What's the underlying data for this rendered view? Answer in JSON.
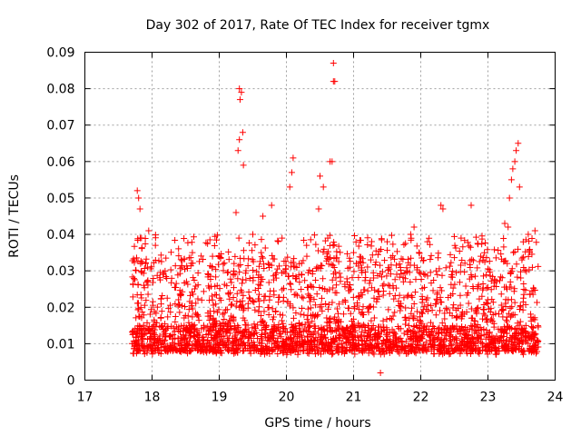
{
  "chart_data": {
    "type": "scatter",
    "title": "Day 302 of 2017, Rate Of TEC Index for receiver tgmx",
    "xlabel": "GPS time / hours",
    "ylabel": "ROTI / TECUs",
    "xlim": [
      17,
      24
    ],
    "ylim": [
      0,
      0.09
    ],
    "xticks": [
      "17",
      "18",
      "19",
      "20",
      "21",
      "22",
      "23",
      "24"
    ],
    "yticks": [
      "0",
      "0.01",
      "0.02",
      "0.03",
      "0.04",
      "0.05",
      "0.06",
      "0.07",
      "0.08",
      "0.09"
    ],
    "grid": true,
    "marker": "+",
    "color": "#ff0000",
    "data_extent": {
      "x_start": 17.7,
      "x_end": 23.75
    },
    "baseline_range": [
      0.004,
      0.03
    ],
    "notable_points": [
      {
        "x": 17.78,
        "y": 0.052
      },
      {
        "x": 17.8,
        "y": 0.05
      },
      {
        "x": 17.82,
        "y": 0.047
      },
      {
        "x": 17.95,
        "y": 0.041
      },
      {
        "x": 18.05,
        "y": 0.037
      },
      {
        "x": 19.3,
        "y": 0.08
      },
      {
        "x": 19.33,
        "y": 0.079
      },
      {
        "x": 19.31,
        "y": 0.077
      },
      {
        "x": 19.35,
        "y": 0.068
      },
      {
        "x": 19.3,
        "y": 0.066
      },
      {
        "x": 19.28,
        "y": 0.063
      },
      {
        "x": 19.36,
        "y": 0.059
      },
      {
        "x": 19.25,
        "y": 0.046
      },
      {
        "x": 19.78,
        "y": 0.048
      },
      {
        "x": 20.1,
        "y": 0.061
      },
      {
        "x": 20.08,
        "y": 0.057
      },
      {
        "x": 20.05,
        "y": 0.053
      },
      {
        "x": 20.5,
        "y": 0.056
      },
      {
        "x": 20.55,
        "y": 0.053
      },
      {
        "x": 20.48,
        "y": 0.047
      },
      {
        "x": 20.65,
        "y": 0.06
      },
      {
        "x": 20.68,
        "y": 0.06
      },
      {
        "x": 20.7,
        "y": 0.087
      },
      {
        "x": 20.7,
        "y": 0.082
      },
      {
        "x": 20.72,
        "y": 0.082
      },
      {
        "x": 21.9,
        "y": 0.042
      },
      {
        "x": 22.3,
        "y": 0.048
      },
      {
        "x": 22.33,
        "y": 0.047
      },
      {
        "x": 22.75,
        "y": 0.048
      },
      {
        "x": 23.25,
        "y": 0.043
      },
      {
        "x": 23.3,
        "y": 0.042
      },
      {
        "x": 23.32,
        "y": 0.05
      },
      {
        "x": 23.35,
        "y": 0.055
      },
      {
        "x": 23.37,
        "y": 0.058
      },
      {
        "x": 23.4,
        "y": 0.06
      },
      {
        "x": 23.42,
        "y": 0.063
      },
      {
        "x": 23.45,
        "y": 0.065
      },
      {
        "x": 23.47,
        "y": 0.053
      },
      {
        "x": 23.6,
        "y": 0.04
      },
      {
        "x": 23.7,
        "y": 0.041
      },
      {
        "x": 21.4,
        "y": 0.002
      },
      {
        "x": 21.5,
        "y": 0.038
      },
      {
        "x": 18.6,
        "y": 0.035
      },
      {
        "x": 18.9,
        "y": 0.034
      },
      {
        "x": 19.5,
        "y": 0.04
      },
      {
        "x": 19.65,
        "y": 0.045
      },
      {
        "x": 20.3,
        "y": 0.037
      },
      {
        "x": 21.0,
        "y": 0.035
      },
      {
        "x": 21.85,
        "y": 0.04
      },
      {
        "x": 22.1,
        "y": 0.038
      },
      {
        "x": 22.6,
        "y": 0.039
      }
    ]
  }
}
